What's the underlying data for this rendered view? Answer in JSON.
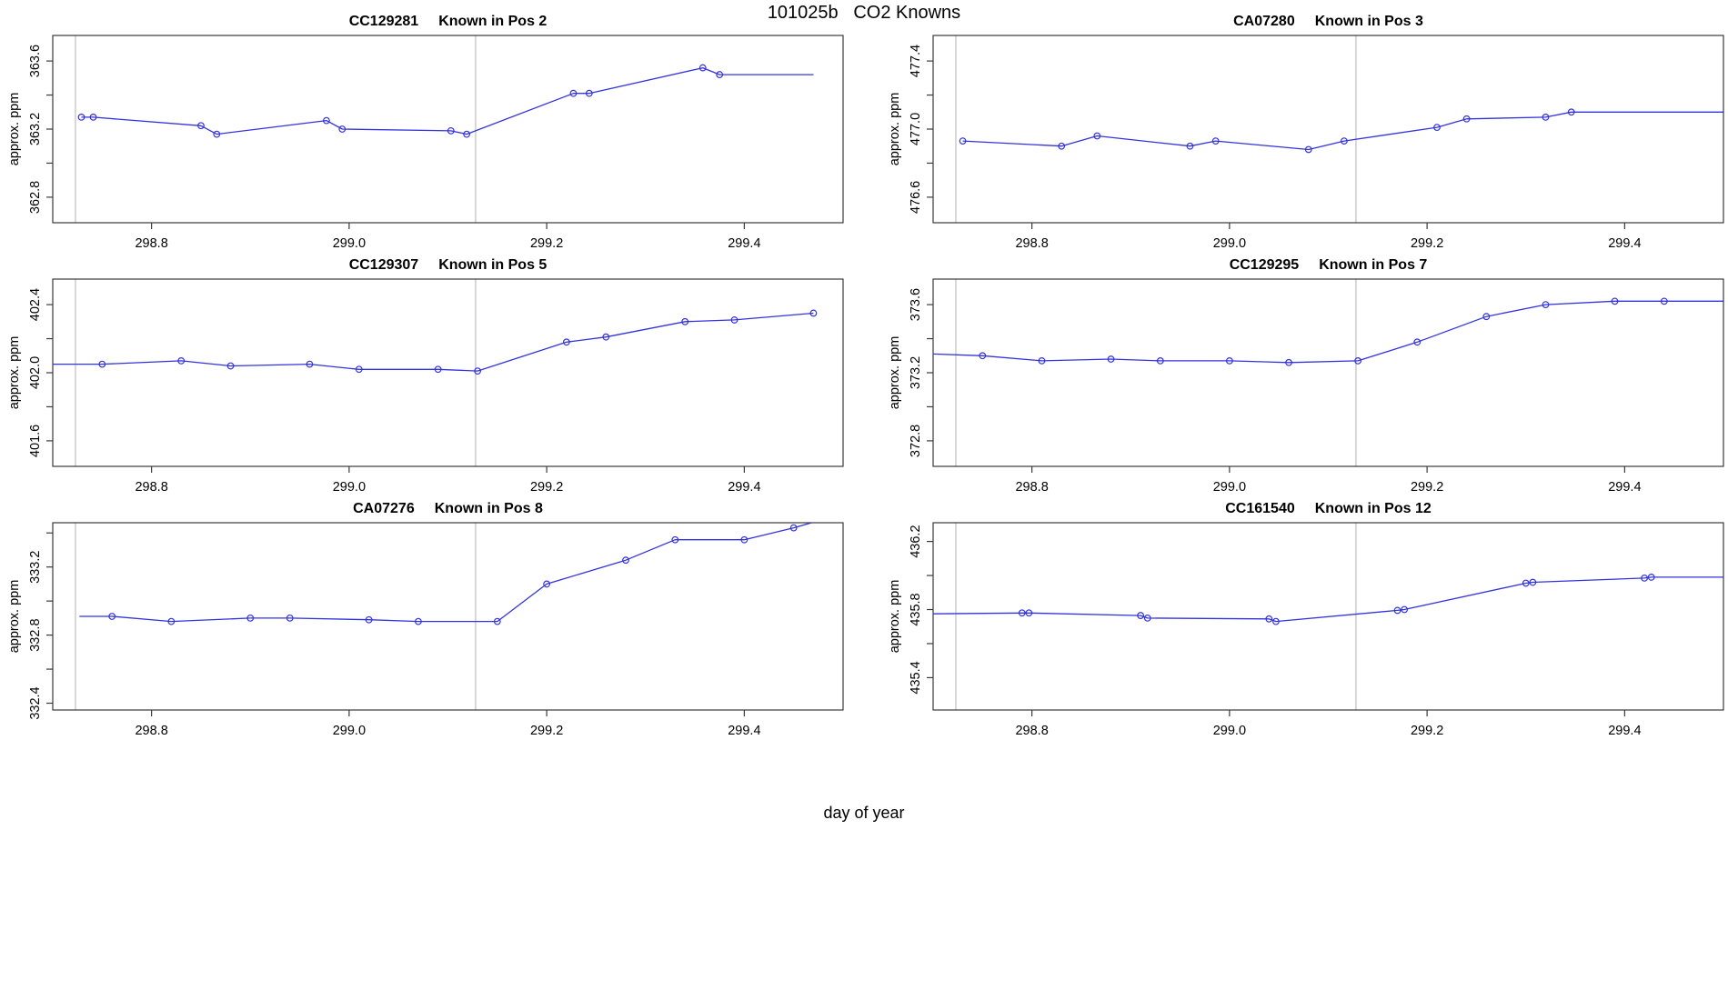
{
  "figure": {
    "title": "101025b   CO2 Knowns",
    "xlabel": "day of year",
    "line_color": "#3333dd",
    "vline_color": "#cfcfcf",
    "box_color": "#3a3a3a",
    "text_color": "#000000",
    "background": "#ffffff"
  },
  "chart_data": {
    "type": "line",
    "title": "101025b   CO2 Knowns",
    "xlabel": "day of year",
    "ylabel": "approx. ppm",
    "xlim": [
      298.7,
      299.5
    ],
    "xticks": [
      298.8,
      299.0,
      299.2,
      299.4
    ],
    "vlines": [
      298.723,
      299.128
    ],
    "grid": false,
    "legend": false,
    "marker": "open-circle",
    "plots": [
      {
        "sample": "CC129281",
        "position": "Known in Pos 2",
        "ylim": [
          362.65,
          363.75
        ],
        "yticks": [
          362.8,
          363.0,
          363.2,
          363.4,
          363.6
        ],
        "yticks_labeled": [
          362.8,
          363.2,
          363.6
        ],
        "points": [
          [
            298.729,
            363.27
          ],
          [
            298.741,
            363.27
          ],
          [
            298.85,
            363.22
          ],
          [
            298.866,
            363.17
          ],
          [
            298.977,
            363.25
          ],
          [
            298.993,
            363.2
          ],
          [
            299.103,
            363.19
          ],
          [
            299.119,
            363.17
          ],
          [
            299.227,
            363.41
          ],
          [
            299.243,
            363.41
          ],
          [
            299.358,
            363.56
          ],
          [
            299.375,
            363.52
          ]
        ],
        "line_start": null,
        "line_end": [
          299.47,
          363.52
        ]
      },
      {
        "sample": "CA07280",
        "position": "Known in Pos 3",
        "ylim": [
          476.45,
          477.55
        ],
        "yticks": [
          476.6,
          476.8,
          477.0,
          477.2,
          477.4
        ],
        "yticks_labeled": [
          476.6,
          477.0,
          477.4
        ],
        "points": [
          [
            298.73,
            476.93
          ],
          [
            298.83,
            476.9
          ],
          [
            298.866,
            476.96
          ],
          [
            298.96,
            476.9
          ],
          [
            298.986,
            476.93
          ],
          [
            299.08,
            476.88
          ],
          [
            299.116,
            476.93
          ],
          [
            299.21,
            477.01
          ],
          [
            299.24,
            477.06
          ],
          [
            299.32,
            477.07
          ],
          [
            299.346,
            477.1
          ]
        ],
        "line_start": null,
        "line_end": [
          299.5,
          477.1
        ]
      },
      {
        "sample": "CC129307",
        "position": "Known in Pos 5",
        "ylim": [
          401.45,
          402.55
        ],
        "yticks": [
          401.6,
          401.8,
          402.0,
          402.2,
          402.4
        ],
        "yticks_labeled": [
          401.6,
          402.0,
          402.4
        ],
        "points": [
          [
            298.75,
            402.05
          ],
          [
            298.83,
            402.07
          ],
          [
            298.88,
            402.04
          ],
          [
            298.96,
            402.05
          ],
          [
            299.01,
            402.02
          ],
          [
            299.09,
            402.02
          ],
          [
            299.13,
            402.01
          ],
          [
            299.22,
            402.18
          ],
          [
            299.26,
            402.21
          ],
          [
            299.34,
            402.3
          ],
          [
            299.39,
            402.31
          ],
          [
            299.47,
            402.35
          ]
        ],
        "line_start": [
          298.7,
          402.05
        ],
        "line_end": null
      },
      {
        "sample": "CC129295",
        "position": "Known in Pos 7",
        "ylim": [
          372.65,
          373.75
        ],
        "yticks": [
          372.8,
          373.0,
          373.2,
          373.4,
          373.6
        ],
        "yticks_labeled": [
          372.8,
          373.2,
          373.6
        ],
        "points": [
          [
            298.75,
            373.3
          ],
          [
            298.81,
            373.27
          ],
          [
            298.88,
            373.28
          ],
          [
            298.93,
            373.27
          ],
          [
            299.0,
            373.27
          ],
          [
            299.06,
            373.26
          ],
          [
            299.13,
            373.27
          ],
          [
            299.19,
            373.38
          ],
          [
            299.26,
            373.53
          ],
          [
            299.32,
            373.6
          ],
          [
            299.39,
            373.62
          ],
          [
            299.44,
            373.62
          ]
        ],
        "line_start": [
          298.7,
          373.31
        ],
        "line_end": [
          299.5,
          373.62
        ]
      },
      {
        "sample": "CA07276",
        "position": "Known in Pos 8",
        "ylim": [
          332.36,
          333.46
        ],
        "yticks": [
          332.4,
          332.6,
          332.8,
          333.0,
          333.2,
          333.4
        ],
        "yticks_labeled": [
          332.4,
          332.8,
          333.2
        ],
        "points": [
          [
            298.76,
            332.91
          ],
          [
            298.82,
            332.88
          ],
          [
            298.9,
            332.9
          ],
          [
            298.94,
            332.9
          ],
          [
            299.02,
            332.89
          ],
          [
            299.07,
            332.88
          ],
          [
            299.15,
            332.88
          ],
          [
            299.2,
            333.1
          ],
          [
            299.28,
            333.24
          ],
          [
            299.33,
            333.36
          ],
          [
            299.4,
            333.36
          ],
          [
            299.45,
            333.43
          ]
        ],
        "line_start": [
          298.727,
          332.91
        ],
        "line_end": [
          299.48,
          333.48
        ]
      },
      {
        "sample": "CC161540",
        "position": "Known in Pos 12",
        "ylim": [
          435.21,
          436.31
        ],
        "yticks": [
          435.4,
          435.6,
          435.8,
          436.0,
          436.2
        ],
        "yticks_labeled": [
          435.4,
          435.8,
          436.2
        ],
        "points": [
          [
            298.79,
            435.78
          ],
          [
            298.797,
            435.78
          ],
          [
            298.91,
            435.765
          ],
          [
            298.917,
            435.75
          ],
          [
            299.04,
            435.745
          ],
          [
            299.047,
            435.73
          ],
          [
            299.17,
            435.795
          ],
          [
            299.177,
            435.8
          ],
          [
            299.3,
            435.955
          ],
          [
            299.307,
            435.96
          ],
          [
            299.42,
            435.985
          ],
          [
            299.427,
            435.99
          ]
        ],
        "line_start": [
          298.7,
          435.775
        ],
        "line_end": [
          299.5,
          435.99
        ]
      }
    ]
  }
}
